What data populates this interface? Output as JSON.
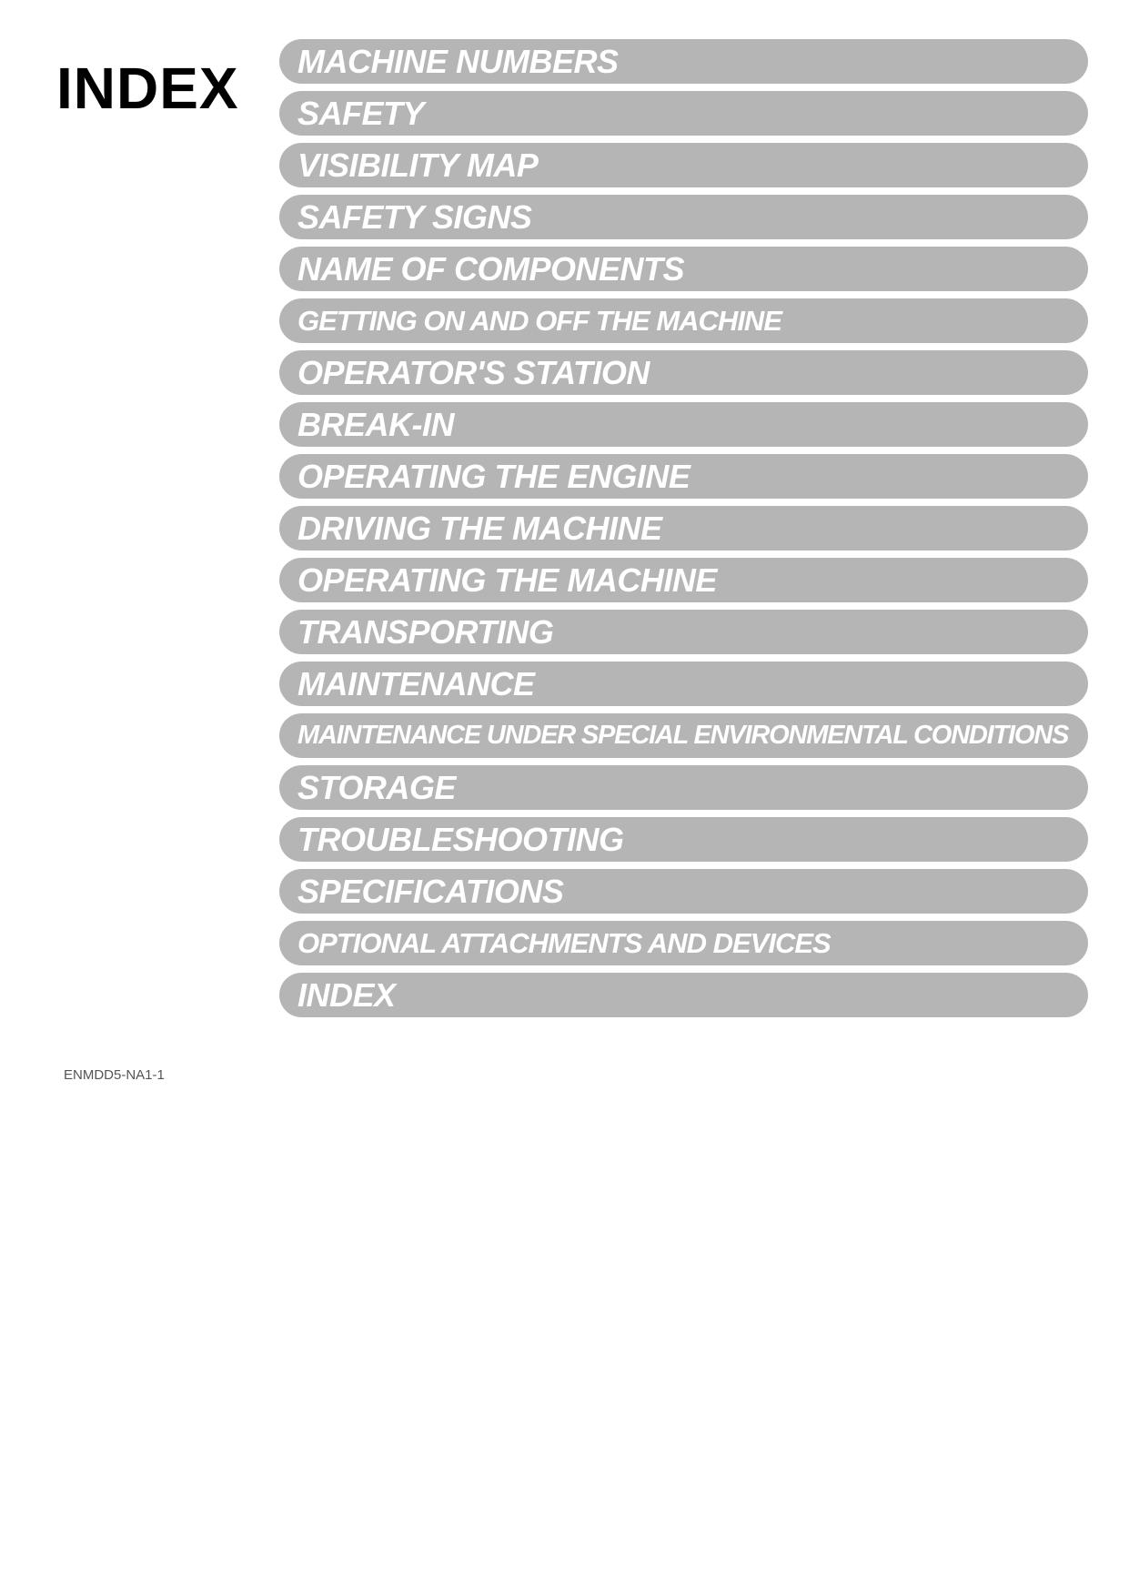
{
  "page": {
    "title": "INDEX",
    "footer_code": "ENMDD5-NA1-1"
  },
  "index": {
    "items": [
      {
        "label": "MACHINE NUMBERS",
        "size": "normal"
      },
      {
        "label": "SAFETY",
        "size": "normal"
      },
      {
        "label": "VISIBILITY MAP",
        "size": "normal"
      },
      {
        "label": "SAFETY SIGNS",
        "size": "normal"
      },
      {
        "label": "NAME OF COMPONENTS",
        "size": "normal"
      },
      {
        "label": "GETTING ON AND OFF THE MACHINE",
        "size": "small"
      },
      {
        "label": "OPERATOR'S STATION",
        "size": "normal"
      },
      {
        "label": "BREAK-IN",
        "size": "normal"
      },
      {
        "label": "OPERATING THE ENGINE",
        "size": "normal"
      },
      {
        "label": "DRIVING THE MACHINE",
        "size": "normal"
      },
      {
        "label": "OPERATING THE MACHINE",
        "size": "normal"
      },
      {
        "label": "TRANSPORTING",
        "size": "normal"
      },
      {
        "label": "MAINTENANCE",
        "size": "normal"
      },
      {
        "label": "MAINTENANCE UNDER SPECIAL ENVIRONMENTAL CONDITIONS",
        "size": "xsmall"
      },
      {
        "label": "STORAGE",
        "size": "normal"
      },
      {
        "label": "TROUBLESHOOTING",
        "size": "normal"
      },
      {
        "label": "SPECIFICATIONS",
        "size": "normal"
      },
      {
        "label": "OPTIONAL ATTACHMENTS AND DEVICES",
        "size": "small"
      },
      {
        "label": "INDEX",
        "size": "normal"
      }
    ]
  },
  "styling": {
    "page_bg": "#ffffff",
    "title_color": "#000000",
    "title_fontsize": 64,
    "pill_bg": "#b5b5b5",
    "pill_text_color": "#ffffff",
    "pill_height": 49,
    "pill_radius": 25,
    "pill_gap": 8,
    "pill_fontsize_normal": 36,
    "pill_fontsize_small": 31,
    "pill_fontsize_xsmall": 29,
    "footer_color": "#545454",
    "footer_fontsize": 15
  }
}
